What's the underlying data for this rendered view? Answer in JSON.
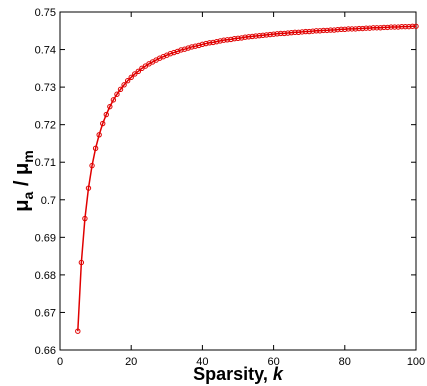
{
  "chart_data": {
    "type": "line",
    "title": "",
    "xlabel_text": "Sparsity, ",
    "xlabel_var": "k",
    "ylabel": {
      "num_symbol": "μ",
      "num_sub": "a",
      "separator": " / ",
      "den_symbol": "μ",
      "den_sub": "m"
    },
    "xlim": [
      0,
      100
    ],
    "ylim": [
      0.66,
      0.75
    ],
    "xticks": [
      0,
      20,
      40,
      60,
      80,
      100
    ],
    "yticks": [
      0.66,
      0.67,
      0.68,
      0.69,
      0.7,
      0.71,
      0.72,
      0.73,
      0.74,
      0.75
    ],
    "xtick_labels": [
      "0",
      "20",
      "40",
      "60",
      "80",
      "100"
    ],
    "ytick_labels": [
      "0.66",
      "0.67",
      "0.68",
      "0.69",
      "0.7",
      "0.71",
      "0.72",
      "0.73",
      "0.74",
      "0.75"
    ],
    "grid": false,
    "legend": "none",
    "series": [
      {
        "color": "#e00000",
        "marker": "circle-open",
        "x": [
          5,
          6,
          7,
          8,
          9,
          10,
          11,
          12,
          13,
          14,
          15,
          16,
          17,
          18,
          19,
          20,
          21,
          22,
          23,
          24,
          25,
          26,
          27,
          28,
          29,
          30,
          31,
          32,
          33,
          34,
          35,
          36,
          37,
          38,
          39,
          40,
          41,
          42,
          43,
          44,
          45,
          46,
          47,
          48,
          49,
          50,
          51,
          52,
          53,
          54,
          55,
          56,
          57,
          58,
          59,
          60,
          61,
          62,
          63,
          64,
          65,
          66,
          67,
          68,
          69,
          70,
          71,
          72,
          73,
          74,
          75,
          76,
          77,
          78,
          79,
          80,
          81,
          82,
          83,
          84,
          85,
          86,
          87,
          88,
          89,
          90,
          91,
          92,
          93,
          94,
          95,
          96,
          97,
          98,
          99,
          100
        ],
        "y": [
          0.665,
          0.6833,
          0.695,
          0.7031,
          0.7091,
          0.7137,
          0.7173,
          0.7203,
          0.7227,
          0.7248,
          0.7266,
          0.7281,
          0.7294,
          0.7306,
          0.7317,
          0.7326,
          0.7335,
          0.7342,
          0.735,
          0.7356,
          0.7362,
          0.7367,
          0.7372,
          0.7377,
          0.7381,
          0.7385,
          0.7389,
          0.7392,
          0.7395,
          0.7399,
          0.7401,
          0.7404,
          0.7407,
          0.7409,
          0.7411,
          0.7414,
          0.7416,
          0.7418,
          0.7419,
          0.7421,
          0.7423,
          0.7425,
          0.7426,
          0.7427,
          0.7429,
          0.743,
          0.7431,
          0.7433,
          0.7434,
          0.7435,
          0.7436,
          0.7437,
          0.7438,
          0.7439,
          0.744,
          0.7441,
          0.7442,
          0.7443,
          0.7443,
          0.7444,
          0.7445,
          0.7446,
          0.7446,
          0.7447,
          0.7448,
          0.7448,
          0.7449,
          0.745,
          0.745,
          0.7451,
          0.7451,
          0.7452,
          0.7452,
          0.7453,
          0.7454,
          0.7454,
          0.7455,
          0.7455,
          0.7455,
          0.7456,
          0.7456,
          0.7457,
          0.7457,
          0.7458,
          0.7458,
          0.7458,
          0.7459,
          0.7459,
          0.746,
          0.746,
          0.746,
          0.7461,
          0.7461,
          0.7461,
          0.7462,
          0.7462
        ]
      }
    ]
  }
}
